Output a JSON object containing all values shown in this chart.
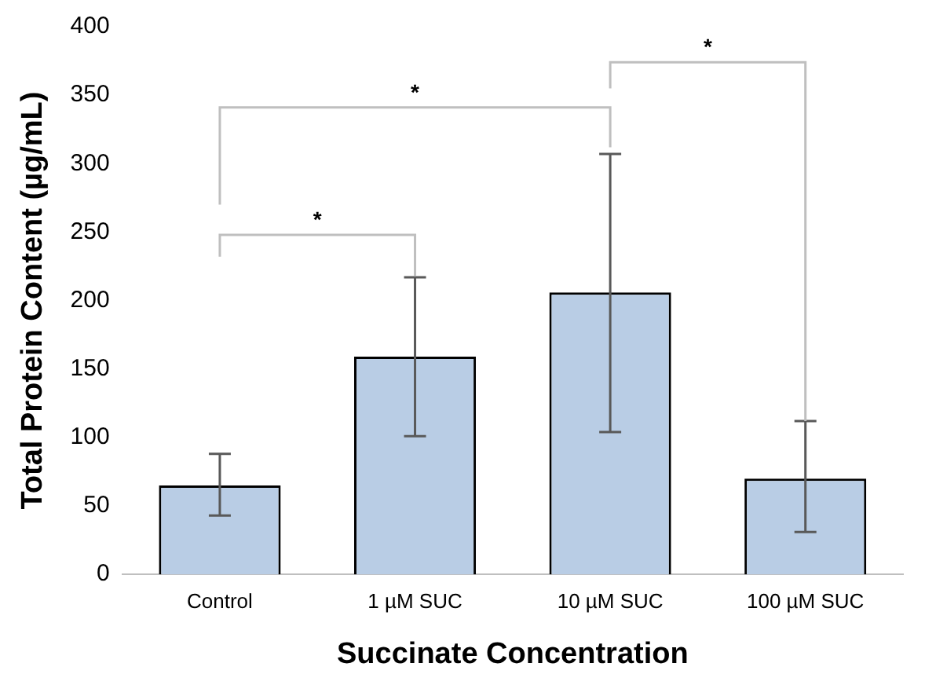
{
  "chart_data": {
    "type": "bar",
    "xlabel": "Succinate Concentration",
    "ylabel": "Total Protein Content (µg/mL)",
    "categories": [
      "Control",
      "1 µM SUC",
      "10 µM SUC",
      "100 µM SUC"
    ],
    "values": [
      65,
      159,
      206,
      70
    ],
    "errors": [
      [
        43,
        88
      ],
      [
        101,
        217
      ],
      [
        104,
        307
      ],
      [
        31,
        112
      ]
    ],
    "color": "#b9cde5",
    "ylim": [
      0,
      400
    ],
    "yticks": [
      0,
      50,
      100,
      150,
      200,
      250,
      300,
      350,
      400
    ],
    "grid": false,
    "legend": false,
    "annotations": [
      "*",
      "*",
      "*"
    ]
  }
}
